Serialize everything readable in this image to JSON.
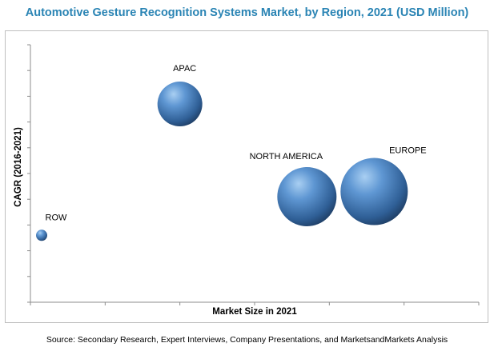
{
  "title": "Automotive Gesture Recognition Systems Market, by Region, 2021 (USD Million)",
  "source": "Source: Secondary Research, Expert Interviews, Company Presentations, and MarketsandMarkets Analysis",
  "chart_data": {
    "type": "bubble",
    "title": "Automotive Gesture Recognition Systems Market, by Region, 2021 (USD Million)",
    "xlabel": "Market Size in 2021",
    "ylabel": "CAGR (2016-2021)",
    "xlim": [
      0,
      6
    ],
    "ylim": [
      0,
      10
    ],
    "grid": false,
    "bubble_color": "#3d77b8",
    "points": [
      {
        "label": "APAC",
        "x": 2.0,
        "y": 7.7,
        "size": 28
      },
      {
        "label": "NORTH AMERICA",
        "x": 3.7,
        "y": 4.1,
        "size": 37
      },
      {
        "label": "EUROPE",
        "x": 4.6,
        "y": 4.3,
        "size": 42
      },
      {
        "label": "ROW",
        "x": 0.15,
        "y": 2.6,
        "size": 7
      }
    ]
  }
}
